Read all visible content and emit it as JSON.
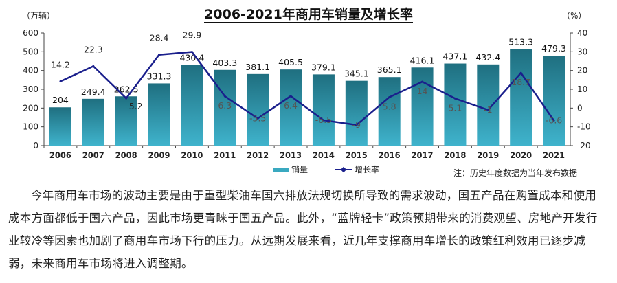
{
  "chart_data": {
    "type": "bar+line",
    "title": "2006-2021年商用车销量及增长率",
    "ylabel_left": "（万辆）",
    "ylabel_right": "（%）",
    "ylim_left": [
      0,
      600
    ],
    "ylim_right": [
      -20,
      40
    ],
    "yticks_left": [
      "0",
      "100",
      "200",
      "300",
      "400",
      "500",
      "600"
    ],
    "yticks_right": [
      "-20",
      "-10",
      "0",
      "10",
      "20",
      "30",
      "40"
    ],
    "categories": [
      "2006",
      "2007",
      "2008",
      "2009",
      "2010",
      "2011",
      "2012",
      "2013",
      "2014",
      "2015",
      "2016",
      "2017",
      "2018",
      "2019",
      "2020",
      "2021"
    ],
    "series": [
      {
        "name": "销量",
        "type": "bar",
        "axis": "left",
        "values": [
          204,
          249.4,
          262.5,
          331.3,
          430.4,
          403.3,
          381.1,
          405.5,
          379.1,
          345.1,
          365.1,
          416.1,
          437.1,
          432.4,
          513.3,
          479.3
        ],
        "labels": [
          "204",
          "249.4",
          "262.5",
          "331.3",
          "430.4",
          "403.3",
          "381.1",
          "405.5",
          "379.1",
          "345.1",
          "365.1",
          "416.1",
          "437.1",
          "432.4",
          "513.3",
          "479.3"
        ]
      },
      {
        "name": "增长率",
        "type": "line",
        "axis": "right",
        "values": [
          14.2,
          22.3,
          5.2,
          28.4,
          29.9,
          6.3,
          -5.5,
          6.4,
          -6.5,
          -9,
          5.8,
          14,
          5.1,
          -1,
          18.7,
          -6.6
        ],
        "labels": [
          "14.2",
          "22.3",
          "5.2",
          "28.4",
          "29.9",
          "6.3",
          "-5.5",
          "6.4",
          "-6.5",
          "-9",
          "5.8",
          "14",
          "5.1",
          "-1",
          "18.7",
          "-6.6"
        ]
      }
    ],
    "legend": "bottom-left",
    "note": "注：历史年度数据为当年发布数据"
  },
  "colors": {
    "bar": "#2f97ad",
    "line": "#1a1f8c"
  },
  "paragraph": "今年商用车市场的波动主要是由于重型柴油车国六排放法规切换所导致的需求波动，国五产品在购置成本和使用成本方面都低于国六产品，因此市场更青睐于国五产品。此外，“蓝牌轻卡”政策预期带来的消费观望、房地产开发行业较冷等因素也加剧了商用车市场下行的压力。从远期发展来看，近几年支撑商用车增长的政策红利效用已逐步减弱，未来商用车市场将进入调整期。"
}
